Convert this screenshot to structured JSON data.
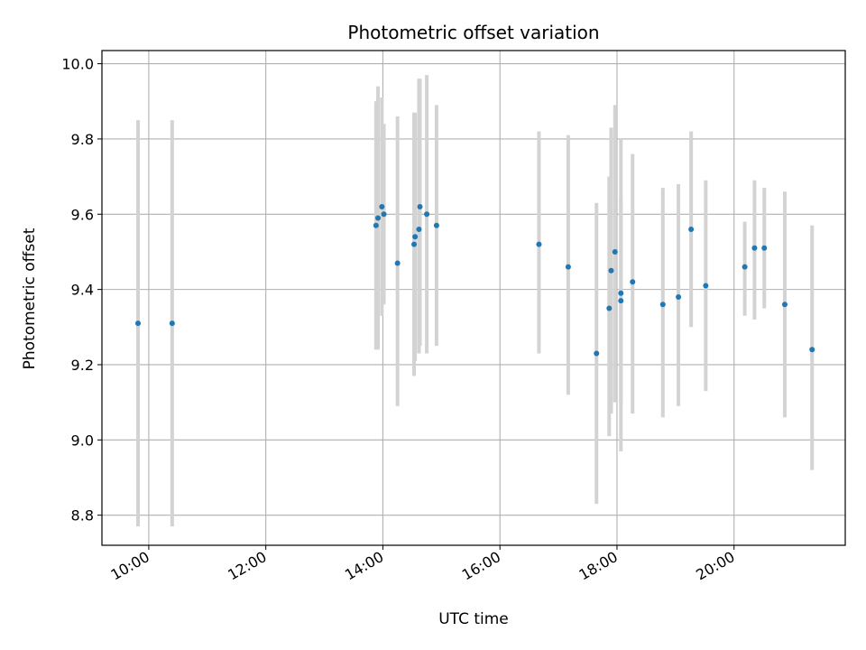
{
  "chart_data": {
    "type": "scatter",
    "title": "Photometric offset variation",
    "xlabel": "UTC time",
    "ylabel": "Photometric offset",
    "xlim": [
      "09:12",
      "21:54"
    ],
    "ylim": [
      8.72,
      10.035
    ],
    "x_ticks": [
      "10:00",
      "12:00",
      "14:00",
      "16:00",
      "18:00",
      "20:00"
    ],
    "y_ticks": [
      "8.8",
      "9.0",
      "9.2",
      "9.4",
      "9.6",
      "9.8",
      "10.0"
    ],
    "grid": true,
    "legend": "none",
    "colors": {
      "points": "#1f77b4",
      "error_bars": "#d3d3d3",
      "grid": "#b0b0b0"
    },
    "series": [
      {
        "points": [
          {
            "x": "09:49",
            "y": 9.31,
            "ylow": 8.77,
            "yhigh": 9.85
          },
          {
            "x": "10:24",
            "y": 9.31,
            "ylow": 8.77,
            "yhigh": 9.85
          },
          {
            "x": "13:53",
            "y": 9.57,
            "ylow": 9.24,
            "yhigh": 9.9
          },
          {
            "x": "13:55",
            "y": 9.59,
            "ylow": 9.24,
            "yhigh": 9.94
          },
          {
            "x": "13:59",
            "y": 9.62,
            "ylow": 9.33,
            "yhigh": 9.91
          },
          {
            "x": "14:01",
            "y": 9.6,
            "ylow": 9.36,
            "yhigh": 9.84
          },
          {
            "x": "14:15",
            "y": 9.47,
            "ylow": 9.09,
            "yhigh": 9.86
          },
          {
            "x": "14:32",
            "y": 9.52,
            "ylow": 9.17,
            "yhigh": 9.87
          },
          {
            "x": "14:33",
            "y": 9.54,
            "ylow": 9.21,
            "yhigh": 9.87
          },
          {
            "x": "14:37",
            "y": 9.56,
            "ylow": 9.23,
            "yhigh": 9.96
          },
          {
            "x": "14:38",
            "y": 9.62,
            "ylow": 9.25,
            "yhigh": 9.96
          },
          {
            "x": "14:45",
            "y": 9.6,
            "ylow": 9.23,
            "yhigh": 9.97
          },
          {
            "x": "14:55",
            "y": 9.57,
            "ylow": 9.25,
            "yhigh": 9.89
          },
          {
            "x": "16:40",
            "y": 9.52,
            "ylow": 9.23,
            "yhigh": 9.82
          },
          {
            "x": "17:10",
            "y": 9.46,
            "ylow": 9.12,
            "yhigh": 9.81
          },
          {
            "x": "17:39",
            "y": 9.23,
            "ylow": 8.83,
            "yhigh": 9.63
          },
          {
            "x": "17:52",
            "y": 9.35,
            "ylow": 9.01,
            "yhigh": 9.7
          },
          {
            "x": "17:54",
            "y": 9.45,
            "ylow": 9.07,
            "yhigh": 9.83
          },
          {
            "x": "17:58",
            "y": 9.5,
            "ylow": 9.1,
            "yhigh": 9.89
          },
          {
            "x": "18:04",
            "y": 9.39,
            "ylow": 8.97,
            "yhigh": 9.8
          },
          {
            "x": "18:04",
            "y": 9.37,
            "ylow": 9.1,
            "yhigh": 9.64
          },
          {
            "x": "18:16",
            "y": 9.42,
            "ylow": 9.07,
            "yhigh": 9.76
          },
          {
            "x": "18:47",
            "y": 9.36,
            "ylow": 9.06,
            "yhigh": 9.67
          },
          {
            "x": "19:03",
            "y": 9.38,
            "ylow": 9.09,
            "yhigh": 9.68
          },
          {
            "x": "19:16",
            "y": 9.56,
            "ylow": 9.3,
            "yhigh": 9.82
          },
          {
            "x": "19:31",
            "y": 9.41,
            "ylow": 9.13,
            "yhigh": 9.69
          },
          {
            "x": "20:11",
            "y": 9.46,
            "ylow": 9.33,
            "yhigh": 9.58
          },
          {
            "x": "20:21",
            "y": 9.51,
            "ylow": 9.32,
            "yhigh": 9.69
          },
          {
            "x": "20:31",
            "y": 9.51,
            "ylow": 9.35,
            "yhigh": 9.67
          },
          {
            "x": "20:52",
            "y": 9.36,
            "ylow": 9.06,
            "yhigh": 9.66
          },
          {
            "x": "21:20",
            "y": 9.24,
            "ylow": 8.92,
            "yhigh": 9.57
          }
        ]
      }
    ]
  }
}
